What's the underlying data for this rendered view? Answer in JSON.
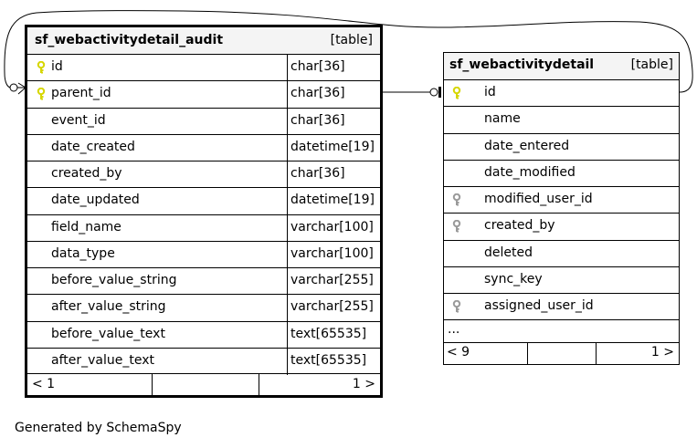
{
  "colors": {
    "primary_key": "#d6d600",
    "foreign_key": "#9a9a9a",
    "header_bg": "#f4f4f4",
    "line": "#000000"
  },
  "tables": [
    {
      "name": "sf_webactivitydetail_audit",
      "type": "[table]",
      "columns": [
        {
          "name": "id",
          "type": "char[36]",
          "key": "primary"
        },
        {
          "name": "parent_id",
          "type": "char[36]",
          "key": "primary"
        },
        {
          "name": "event_id",
          "type": "char[36]",
          "key": ""
        },
        {
          "name": "date_created",
          "type": "datetime[19]",
          "key": ""
        },
        {
          "name": "created_by",
          "type": "char[36]",
          "key": ""
        },
        {
          "name": "date_updated",
          "type": "datetime[19]",
          "key": ""
        },
        {
          "name": "field_name",
          "type": "varchar[100]",
          "key": ""
        },
        {
          "name": "data_type",
          "type": "varchar[100]",
          "key": ""
        },
        {
          "name": "before_value_string",
          "type": "varchar[255]",
          "key": ""
        },
        {
          "name": "after_value_string",
          "type": "varchar[255]",
          "key": ""
        },
        {
          "name": "before_value_text",
          "type": "text[65535]",
          "key": ""
        },
        {
          "name": "after_value_text",
          "type": "text[65535]",
          "key": ""
        }
      ],
      "footer": {
        "left": "< 1",
        "right": "1 >"
      }
    },
    {
      "name": "sf_webactivitydetail",
      "type": "[table]",
      "columns": [
        {
          "name": "id",
          "type": "",
          "key": "primary"
        },
        {
          "name": "name",
          "type": "",
          "key": ""
        },
        {
          "name": "date_entered",
          "type": "",
          "key": ""
        },
        {
          "name": "date_modified",
          "type": "",
          "key": ""
        },
        {
          "name": "modified_user_id",
          "type": "",
          "key": "foreign"
        },
        {
          "name": "created_by",
          "type": "",
          "key": "foreign"
        },
        {
          "name": "deleted",
          "type": "",
          "key": ""
        },
        {
          "name": "sync_key",
          "type": "",
          "key": ""
        },
        {
          "name": "assigned_user_id",
          "type": "",
          "key": "foreign"
        }
      ],
      "more": "...",
      "footer": {
        "left": "< 9",
        "right": "1 >"
      }
    }
  ],
  "generated_by": "Generated by SchemaSpy"
}
